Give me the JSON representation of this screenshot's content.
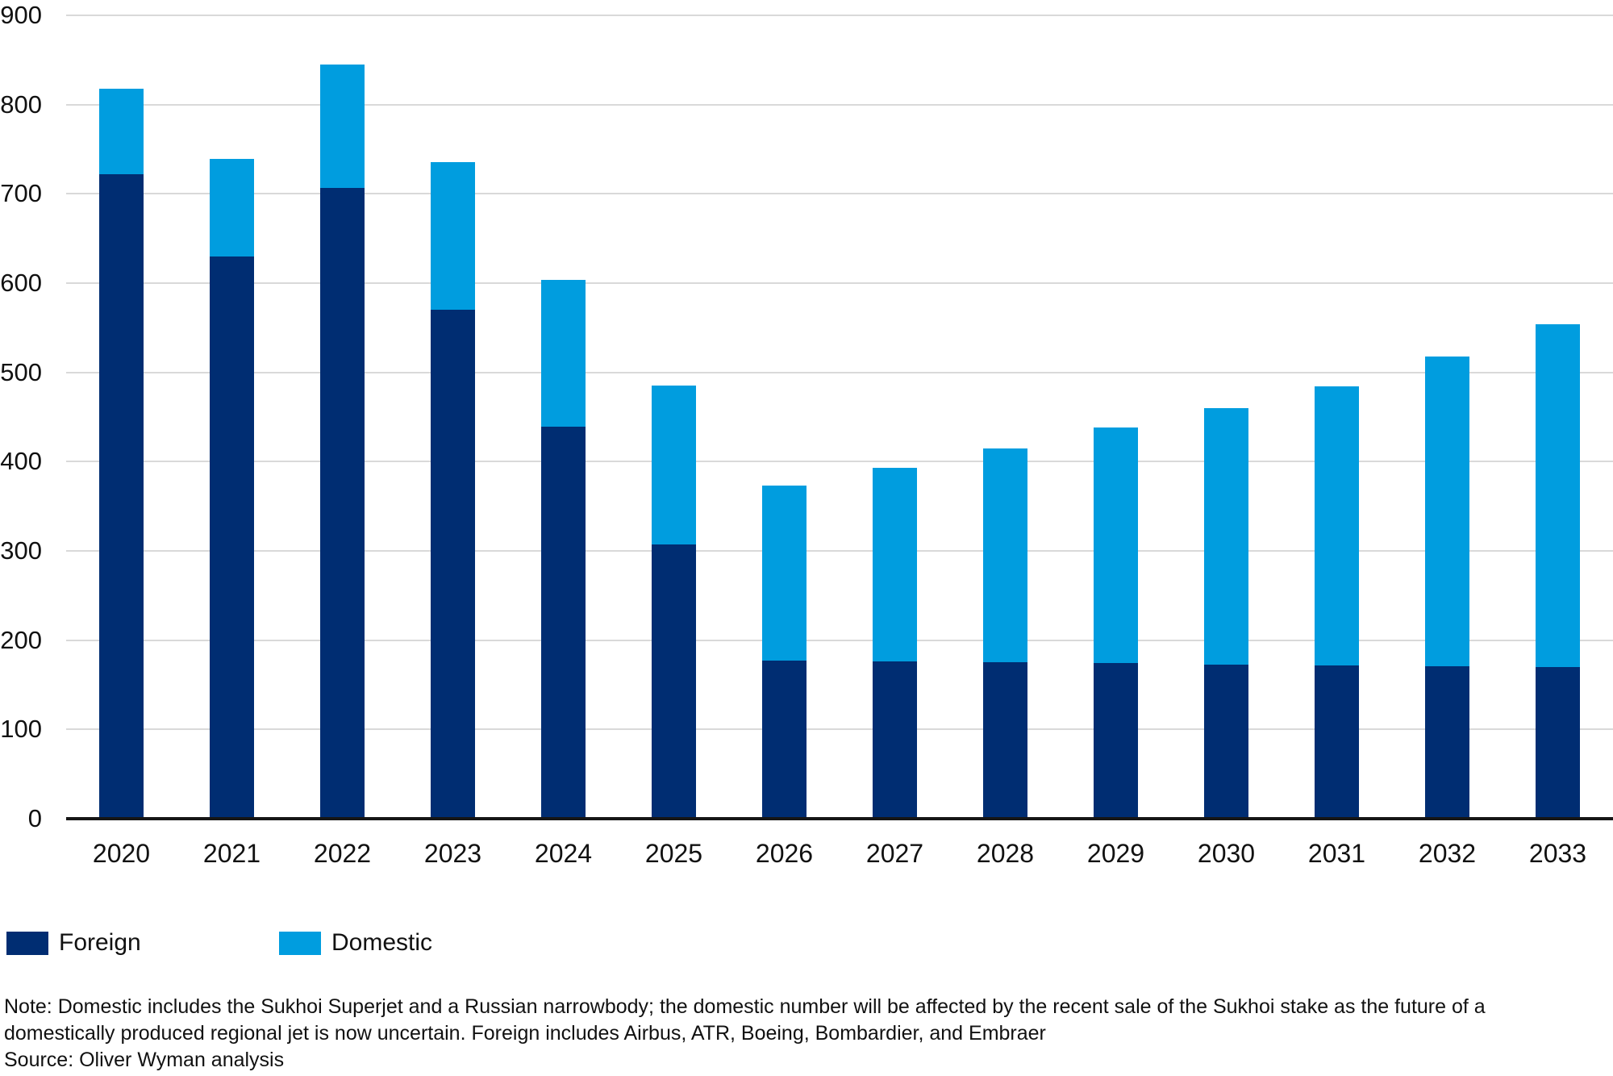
{
  "chart_data": {
    "type": "bar",
    "stacked": true,
    "title": "",
    "xlabel": "",
    "ylabel": "",
    "categories": [
      "2020",
      "2021",
      "2022",
      "2023",
      "2024",
      "2025",
      "2026",
      "2027",
      "2028",
      "2029",
      "2030",
      "2031",
      "2032",
      "2033"
    ],
    "series": [
      {
        "name": "Foreign",
        "color": "#002d72",
        "values": [
          722,
          630,
          707,
          570,
          439,
          307,
          177,
          176,
          175,
          174,
          173,
          172,
          171,
          170
        ]
      },
      {
        "name": "Domestic",
        "color": "#009ddf",
        "values": [
          96,
          109,
          138,
          166,
          165,
          178,
          196,
          217,
          240,
          264,
          287,
          312,
          347,
          384
        ]
      }
    ],
    "stack_totals": [
      818,
      739,
      845,
      736,
      604,
      485,
      373,
      393,
      415,
      438,
      460,
      484,
      518,
      554
    ],
    "ylim": [
      0,
      900
    ],
    "ytick_labels": [
      "900",
      "800",
      "700",
      "600",
      "500",
      "400",
      "300",
      "200",
      "100",
      "0"
    ],
    "grid": true,
    "gridline_color": "#d9d9d9",
    "axis_color": "#161616",
    "legend_position": "bottom-left"
  },
  "legend": {
    "items": [
      {
        "label": "Foreign",
        "color": "#002d72"
      },
      {
        "label": "Domestic",
        "color": "#009ddf"
      }
    ]
  },
  "footnote": {
    "note_line1": "Note: Domestic includes the Sukhoi Superjet and a Russian narrowbody; the domestic number will be affected by the recent sale of the Sukhoi stake as the future of a",
    "note_line2": "domestically produced regional jet is now uncertain. Foreign includes Airbus, ATR, Boeing, Bombardier, and Embraer",
    "source": "Source: Oliver Wyman analysis"
  }
}
